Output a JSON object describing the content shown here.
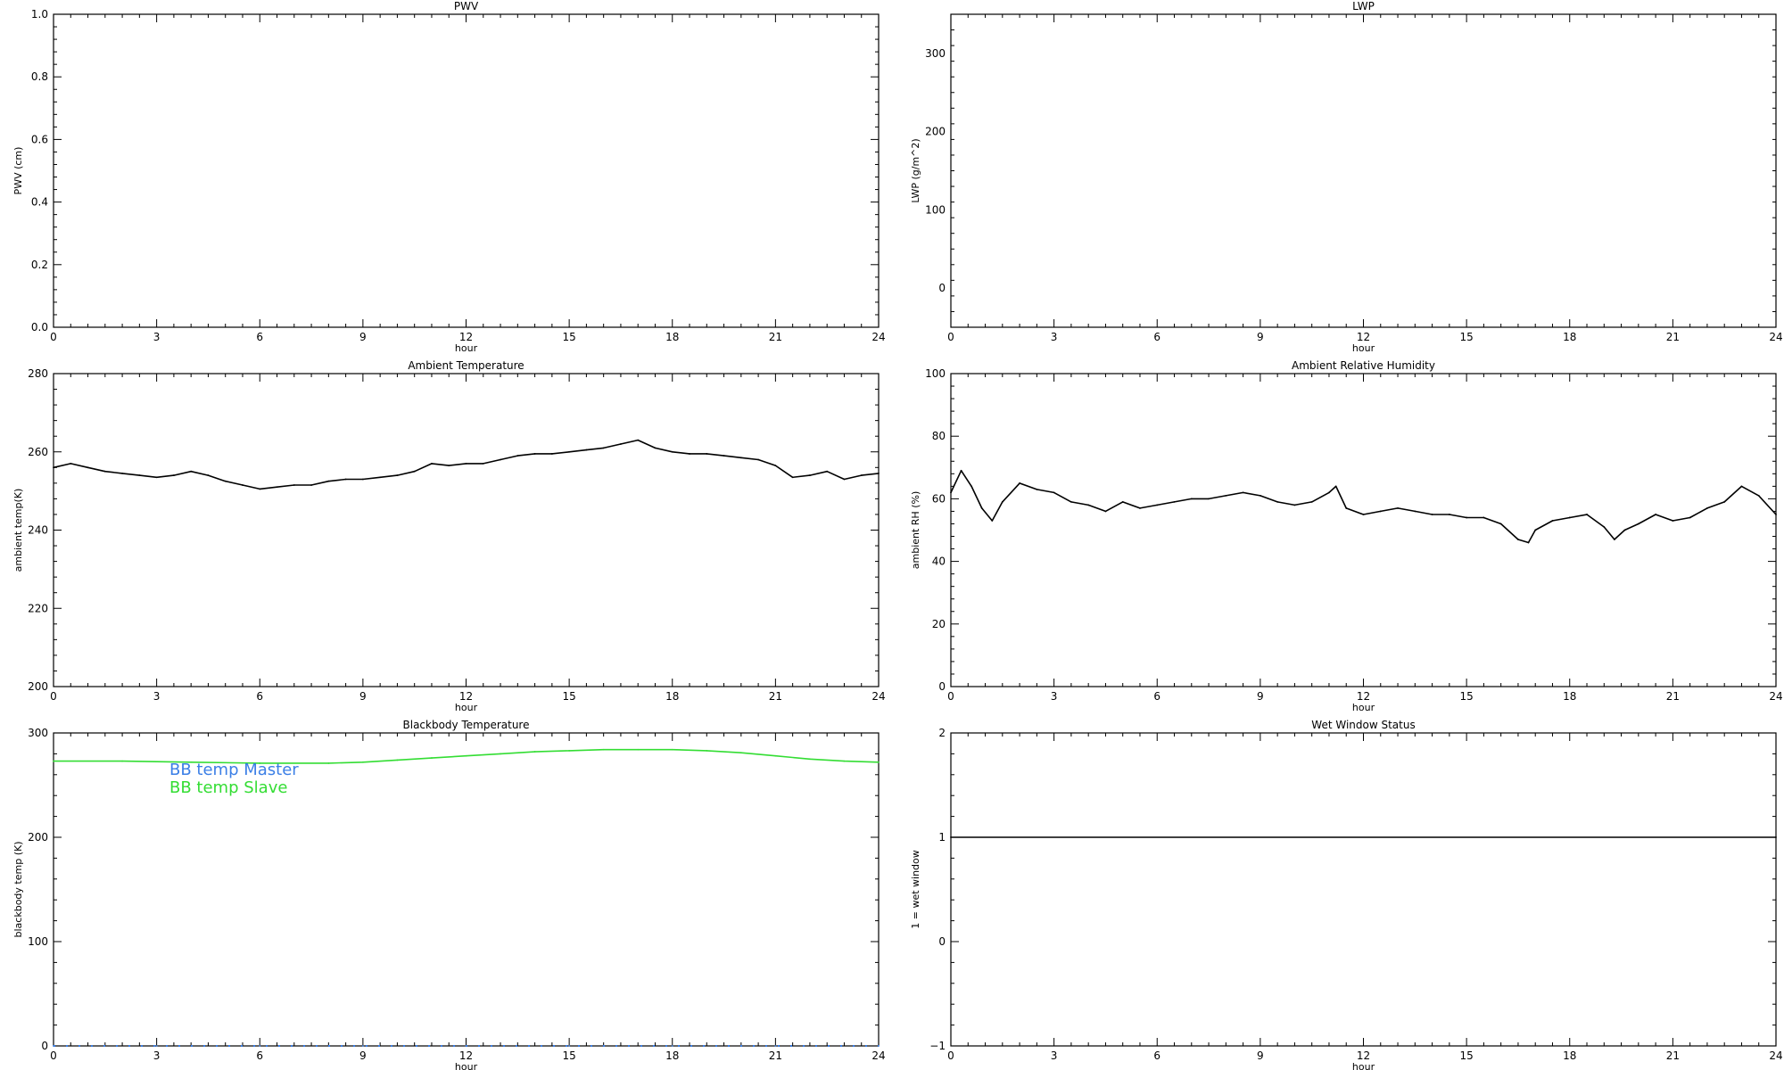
{
  "chart_data": [
    {
      "id": "pwv",
      "type": "line",
      "title": "PWV",
      "xlabel": "hour",
      "ylabel": "PWV (cm)",
      "xlim": [
        0,
        24
      ],
      "ylim": [
        0,
        1
      ],
      "xticks": [
        0,
        3,
        6,
        9,
        12,
        15,
        18,
        21,
        24
      ],
      "yticks": [
        0.0,
        0.2,
        0.4,
        0.6,
        0.8,
        1.0
      ],
      "ytick_labels": [
        "0.0",
        "0.2",
        "0.4",
        "0.6",
        "0.8",
        "1.0"
      ],
      "series": []
    },
    {
      "id": "lwp",
      "type": "line",
      "title": "LWP",
      "xlabel": "hour",
      "ylabel": "LWP (g/m^2)",
      "xlim": [
        0,
        24
      ],
      "ylim": [
        -50,
        350
      ],
      "xticks": [
        0,
        3,
        6,
        9,
        12,
        15,
        18,
        21,
        24
      ],
      "yticks": [
        0,
        100,
        200,
        300
      ],
      "ytick_labels": [
        "0",
        "100",
        "200",
        "300"
      ],
      "series": []
    },
    {
      "id": "ambient-temperature",
      "type": "line",
      "title": "Ambient Temperature",
      "xlabel": "hour",
      "ylabel": "ambient temp(K)",
      "xlim": [
        0,
        24
      ],
      "ylim": [
        200,
        280
      ],
      "xticks": [
        0,
        3,
        6,
        9,
        12,
        15,
        18,
        21,
        24
      ],
      "yticks": [
        200,
        220,
        240,
        260,
        280
      ],
      "ytick_labels": [
        "200",
        "220",
        "240",
        "260",
        "280"
      ],
      "series": [
        {
          "color": "#000000",
          "x": [
            0,
            0.5,
            1,
            1.5,
            2,
            2.5,
            3,
            3.5,
            4,
            4.5,
            5,
            5.5,
            6,
            6.5,
            7,
            7.5,
            8,
            8.5,
            9,
            9.5,
            10,
            10.5,
            11,
            11.5,
            12,
            12.5,
            13,
            13.5,
            14,
            14.5,
            15,
            15.5,
            16,
            16.5,
            17,
            17.5,
            18,
            18.5,
            19,
            19.5,
            20,
            20.5,
            21,
            21.5,
            22,
            22.5,
            23,
            23.5,
            24
          ],
          "y": [
            256,
            257,
            256,
            255,
            254.5,
            254,
            253.5,
            254,
            255,
            254,
            252.5,
            251.5,
            250.5,
            251,
            251.5,
            251.5,
            252.5,
            253,
            253,
            253.5,
            254,
            255,
            257,
            256.5,
            257,
            257,
            258,
            259,
            259.5,
            259.5,
            260,
            260.5,
            261,
            262,
            263,
            261,
            260,
            259.5,
            259.5,
            259,
            258.5,
            258,
            256.5,
            253.5,
            254,
            255,
            253,
            254,
            254.5
          ]
        }
      ]
    },
    {
      "id": "ambient-relative-humidity",
      "type": "line",
      "title": "Ambient Relative Humidity",
      "xlabel": "hour",
      "ylabel": "ambient RH (%)",
      "xlim": [
        0,
        24
      ],
      "ylim": [
        0,
        100
      ],
      "xticks": [
        0,
        3,
        6,
        9,
        12,
        15,
        18,
        21,
        24
      ],
      "yticks": [
        0,
        20,
        40,
        60,
        80,
        100
      ],
      "ytick_labels": [
        "0",
        "20",
        "40",
        "60",
        "80",
        "100"
      ],
      "series": [
        {
          "color": "#000000",
          "x": [
            0,
            0.3,
            0.6,
            0.9,
            1.2,
            1.5,
            2,
            2.5,
            3,
            3.5,
            4,
            4.5,
            5,
            5.5,
            6,
            6.5,
            7,
            7.5,
            8,
            8.5,
            9,
            9.5,
            10,
            10.5,
            11,
            11.2,
            11.5,
            12,
            12.5,
            13,
            13.5,
            14,
            14.5,
            15,
            15.5,
            16,
            16.5,
            16.8,
            17,
            17.5,
            18,
            18.5,
            19,
            19.3,
            19.6,
            20,
            20.5,
            21,
            21.5,
            22,
            22.5,
            23,
            23.5,
            24
          ],
          "y": [
            62,
            69,
            64,
            57,
            53,
            59,
            65,
            63,
            62,
            59,
            58,
            56,
            59,
            57,
            58,
            59,
            60,
            60,
            61,
            62,
            61,
            59,
            58,
            59,
            62,
            64,
            57,
            55,
            56,
            57,
            56,
            55,
            55,
            54,
            54,
            52,
            47,
            46,
            50,
            53,
            54,
            55,
            51,
            47,
            50,
            52,
            55,
            53,
            54,
            57,
            59,
            64,
            61,
            55
          ]
        }
      ]
    },
    {
      "id": "blackbody-temperature",
      "type": "line",
      "title": "Blackbody Temperature",
      "xlabel": "hour",
      "ylabel": "blackbody temp (K)",
      "xlim": [
        0,
        24
      ],
      "ylim": [
        0,
        300
      ],
      "xticks": [
        0,
        3,
        6,
        9,
        12,
        15,
        18,
        21,
        24
      ],
      "yticks": [
        0,
        100,
        200,
        300
      ],
      "ytick_labels": [
        "0",
        "100",
        "200",
        "300"
      ],
      "legend": [
        "BB temp Master",
        "BB temp Slave"
      ],
      "series": [
        {
          "name": "BB temp Master",
          "color": "#3b7fe6",
          "style": "dotted",
          "x": [
            0,
            3,
            6,
            9,
            12,
            15,
            18,
            21,
            24
          ],
          "y": [
            0,
            0,
            0,
            0,
            0,
            0,
            0,
            0,
            0
          ]
        },
        {
          "name": "BB temp Slave",
          "color": "#33dd33",
          "x": [
            0,
            2,
            4,
            6,
            8,
            9,
            10,
            11,
            12,
            13,
            14,
            15,
            16,
            17,
            18,
            19,
            20,
            21,
            22,
            23,
            24
          ],
          "y": [
            273,
            273,
            272,
            271,
            271,
            272,
            274,
            276,
            278,
            280,
            282,
            283,
            284,
            284,
            284,
            283,
            281,
            278,
            275,
            273,
            272
          ]
        }
      ]
    },
    {
      "id": "wet-window-status",
      "type": "line",
      "title": "Wet Window Status",
      "xlabel": "hour",
      "ylabel": "1 = wet window",
      "xlim": [
        0,
        24
      ],
      "ylim": [
        -1,
        2
      ],
      "xticks": [
        0,
        3,
        6,
        9,
        12,
        15,
        18,
        21,
        24
      ],
      "yticks": [
        -1,
        0,
        1,
        2
      ],
      "ytick_labels": [
        "−1",
        "0",
        "1",
        "2"
      ],
      "series": [
        {
          "color": "#000000",
          "x": [
            0,
            24
          ],
          "y": [
            1,
            1
          ]
        }
      ]
    }
  ]
}
